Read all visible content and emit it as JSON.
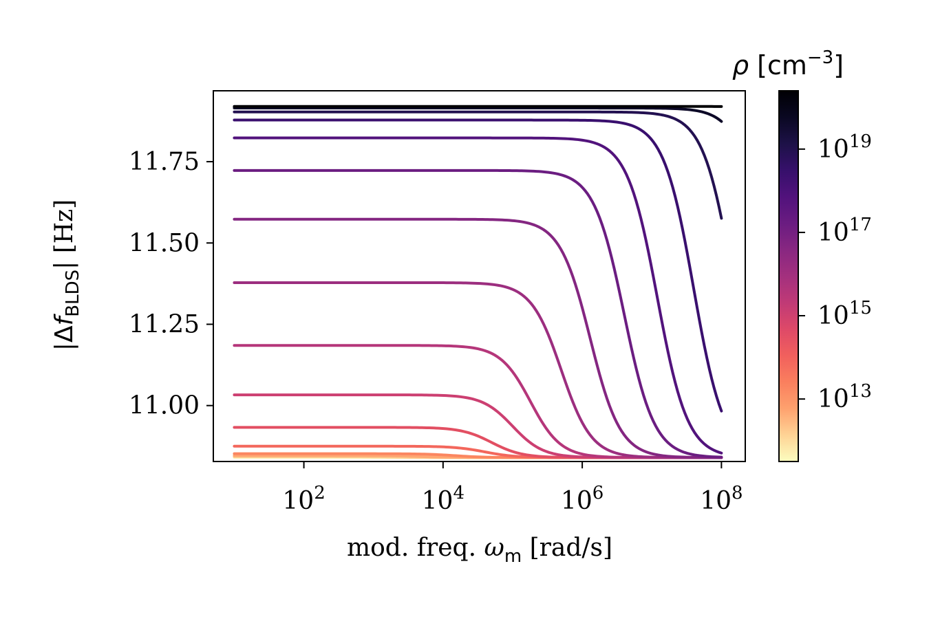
{
  "chart_data": {
    "type": "line",
    "title": "",
    "xlabel": {
      "main": "mod. freq. ",
      "symbol": "ω",
      "sub": "m",
      "unit": " [rad/s]"
    },
    "ylabel": {
      "open": "|Δ",
      "symbol": "f",
      "sub": "BLDS",
      "close": "| [Hz]"
    },
    "x_scale": "log",
    "xlim": [
      5,
      220000000
    ],
    "ylim": [
      10.828,
      11.968
    ],
    "x_ticks": [
      {
        "value": 100,
        "base": "10",
        "exp": "2"
      },
      {
        "value": 10000,
        "base": "10",
        "exp": "4"
      },
      {
        "value": 1000000,
        "base": "10",
        "exp": "6"
      },
      {
        "value": 100000000,
        "base": "10",
        "exp": "8"
      }
    ],
    "y_ticks": [
      {
        "value": 11.0,
        "label": "11.00"
      },
      {
        "value": 11.25,
        "label": "11.25"
      },
      {
        "value": 11.5,
        "label": "11.50"
      },
      {
        "value": 11.75,
        "label": "11.75"
      }
    ],
    "x_range_data": [
      10,
      100000000
    ],
    "asymptote": 10.84,
    "series": [
      {
        "name": "rho=1e12",
        "rho_exp": 12,
        "low": 10.841,
        "cutoff": 1000,
        "color": "#fcf1b3"
      },
      {
        "name": "rho=1e12.5",
        "rho_exp": 12.5,
        "low": 10.843,
        "cutoff": 2000,
        "color": "#fdcd90"
      },
      {
        "name": "rho=1e13",
        "rho_exp": 13,
        "low": 10.846,
        "cutoff": 5000,
        "color": "#fea772"
      },
      {
        "name": "rho=1e13.5",
        "rho_exp": 13.5,
        "low": 10.852,
        "cutoff": 15000,
        "color": "#fb8660"
      },
      {
        "name": "rho=1e14",
        "rho_exp": 14,
        "low": 10.875,
        "cutoff": 40000,
        "color": "#f3675c"
      },
      {
        "name": "rho=1e14.5",
        "rho_exp": 14.5,
        "low": 10.933,
        "cutoff": 50000,
        "color": "#e24f62"
      },
      {
        "name": "rho=1e15",
        "rho_exp": 15,
        "low": 11.033,
        "cutoff": 100000,
        "color": "#cc3f71"
      },
      {
        "name": "rho=1e15.5",
        "rho_exp": 15.5,
        "low": 11.185,
        "cutoff": 180000,
        "color": "#b5367a"
      },
      {
        "name": "rho=1e16",
        "rho_exp": 16,
        "low": 11.378,
        "cutoff": 500000,
        "color": "#9c2e7f"
      },
      {
        "name": "rho=1e16.5",
        "rho_exp": 16.5,
        "low": 11.573,
        "cutoff": 1300000,
        "color": "#842681"
      },
      {
        "name": "rho=1e17",
        "rho_exp": 17,
        "low": 11.723,
        "cutoff": 4000000,
        "color": "#6b1d81"
      },
      {
        "name": "rho=1e17.5",
        "rho_exp": 17.5,
        "low": 11.823,
        "cutoff": 12000000,
        "color": "#52137c"
      },
      {
        "name": "rho=1e18",
        "rho_exp": 18,
        "low": 11.878,
        "cutoff": 40000000,
        "color": "#390f6e"
      },
      {
        "name": "rho=1e18.5",
        "rho_exp": 18.5,
        "low": 11.903,
        "cutoff": 150000000,
        "color": "#231151"
      },
      {
        "name": "rho=1e19",
        "rho_exp": 19,
        "low": 11.915,
        "cutoff": 500000000,
        "color": "#0c0927"
      },
      {
        "name": "rho=1e20",
        "rho_exp": 20,
        "low": 11.92,
        "cutoff": 5000000000,
        "color": "#000004"
      }
    ],
    "colorbar": {
      "label": {
        "symbol": "ρ",
        "unit_open": " [cm",
        "unit_exp": "−3",
        "unit_close": "]"
      },
      "scale": "log",
      "range_exp": [
        11.5,
        20.4
      ],
      "ticks": [
        {
          "exp_value": 13,
          "base": "10",
          "exp": "13"
        },
        {
          "exp_value": 15,
          "base": "10",
          "exp": "15"
        },
        {
          "exp_value": 17,
          "base": "10",
          "exp": "17"
        },
        {
          "exp_value": 19,
          "base": "10",
          "exp": "19"
        }
      ],
      "colormap": "magma_r",
      "stops": [
        "#fcfdbf",
        "#fed395",
        "#fea16e",
        "#fa7f5e",
        "#f1605d",
        "#de4968",
        "#c03a76",
        "#a3307e",
        "#882781",
        "#6a1c81",
        "#51127c",
        "#36106b",
        "#1d1147",
        "#0a0822",
        "#000004"
      ]
    }
  }
}
